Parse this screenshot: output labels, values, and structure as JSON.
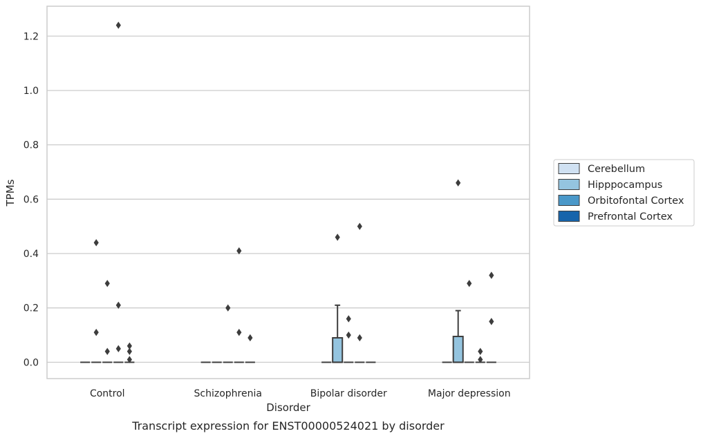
{
  "chart_data": {
    "type": "box",
    "xlabel": "Disorder",
    "ylabel": "TPMs",
    "caption": "Transcript expression for ENST00000524021 by disorder",
    "categories": [
      "Control",
      "Schizophrenia",
      "Bipolar disorder",
      "Major depression"
    ],
    "ylim": [
      -0.06,
      1.31
    ],
    "yticks": [
      0.0,
      0.2,
      0.4,
      0.6,
      0.8,
      1.0,
      1.2
    ],
    "ytick_labels": [
      "0.0",
      "0.2",
      "0.4",
      "0.6",
      "0.8",
      "1.0",
      "1.2"
    ],
    "grid": true,
    "legend_position": "right",
    "series": [
      {
        "name": "Cerebellum",
        "color": "#d0e1f2",
        "boxes": [
          {
            "category": "Control",
            "q1": 0,
            "median": 0,
            "q3": 0,
            "whisker_low": 0,
            "whisker_high": 0,
            "outliers": []
          },
          {
            "category": "Schizophrenia",
            "q1": 0,
            "median": 0,
            "q3": 0,
            "whisker_low": 0,
            "whisker_high": 0,
            "outliers": []
          },
          {
            "category": "Bipolar disorder",
            "q1": 0,
            "median": 0,
            "q3": 0,
            "whisker_low": 0,
            "whisker_high": 0,
            "outliers": []
          },
          {
            "category": "Major depression",
            "q1": 0,
            "median": 0,
            "q3": 0,
            "whisker_low": 0,
            "whisker_high": 0,
            "outliers": []
          }
        ]
      },
      {
        "name": "Hipppocampus",
        "color": "#94c4df",
        "boxes": [
          {
            "category": "Control",
            "q1": 0,
            "median": 0,
            "q3": 0,
            "whisker_low": 0,
            "whisker_high": 0,
            "outliers": [
              0.44,
              0.11
            ]
          },
          {
            "category": "Schizophrenia",
            "q1": 0,
            "median": 0,
            "q3": 0,
            "whisker_low": 0,
            "whisker_high": 0,
            "outliers": []
          },
          {
            "category": "Bipolar disorder",
            "q1": 0,
            "median": 0,
            "q3": 0.09,
            "whisker_low": 0,
            "whisker_high": 0.21,
            "outliers": [
              0.46
            ]
          },
          {
            "category": "Major depression",
            "q1": 0,
            "median": 0,
            "q3": 0.095,
            "whisker_low": 0,
            "whisker_high": 0.19,
            "outliers": [
              0.66
            ]
          }
        ]
      },
      {
        "name": "Orbitofontal Cortex",
        "color": "#4a98c9",
        "boxes": [
          {
            "category": "Control",
            "q1": 0,
            "median": 0,
            "q3": 0,
            "whisker_low": 0,
            "whisker_high": 0,
            "outliers": [
              0.29,
              0.04
            ]
          },
          {
            "category": "Schizophrenia",
            "q1": 0,
            "median": 0,
            "q3": 0,
            "whisker_low": 0,
            "whisker_high": 0,
            "outliers": [
              0.2
            ]
          },
          {
            "category": "Bipolar disorder",
            "q1": 0,
            "median": 0,
            "q3": 0,
            "whisker_low": 0,
            "whisker_high": 0,
            "outliers": [
              0.16,
              0.1
            ]
          },
          {
            "category": "Major depression",
            "q1": 0,
            "median": 0,
            "q3": 0,
            "whisker_low": 0,
            "whisker_high": 0,
            "outliers": [
              0.29
            ]
          }
        ]
      },
      {
        "name": "Prefrontal Cortex",
        "color": "#1764ab",
        "boxes": [
          {
            "category": "Control",
            "q1": 0,
            "median": 0,
            "q3": 0,
            "whisker_low": 0,
            "whisker_high": 0,
            "outliers": [
              1.24,
              0.21,
              0.05
            ]
          },
          {
            "category": "Schizophrenia",
            "q1": 0,
            "median": 0,
            "q3": 0,
            "whisker_low": 0,
            "whisker_high": 0,
            "outliers": [
              0.41,
              0.11
            ]
          },
          {
            "category": "Bipolar disorder",
            "q1": 0,
            "median": 0,
            "q3": 0,
            "whisker_low": 0,
            "whisker_high": 0,
            "outliers": [
              0.5,
              0.09
            ]
          },
          {
            "category": "Major depression",
            "q1": 0,
            "median": 0,
            "q3": 0,
            "whisker_low": 0,
            "whisker_high": 0,
            "outliers": [
              0.04,
              0.01
            ]
          }
        ]
      },
      {
        "name": "",
        "color": "#08306b",
        "boxes": [
          {
            "category": "Control",
            "q1": 0,
            "median": 0,
            "q3": 0,
            "whisker_low": 0,
            "whisker_high": 0,
            "outliers": [
              0.06,
              0.04,
              0.01
            ]
          },
          {
            "category": "Schizophrenia",
            "q1": 0,
            "median": 0,
            "q3": 0,
            "whisker_low": 0,
            "whisker_high": 0,
            "outliers": [
              0.09
            ]
          },
          {
            "category": "Bipolar disorder",
            "q1": 0,
            "median": 0,
            "q3": 0,
            "whisker_low": 0,
            "whisker_high": 0,
            "outliers": []
          },
          {
            "category": "Major depression",
            "q1": 0,
            "median": 0,
            "q3": 0,
            "whisker_low": 0,
            "whisker_high": 0,
            "outliers": [
              0.32,
              0.15
            ]
          }
        ]
      }
    ],
    "legend_entries": [
      "Cerebellum",
      "Hipppocampus",
      "Orbitofontal Cortex",
      "Prefrontal Cortex"
    ],
    "legend_colors": [
      "#d0e1f2",
      "#94c4df",
      "#4a98c9",
      "#1764ab"
    ],
    "style": {
      "grid_color": "#cccccc",
      "frame_color": "#cccccc",
      "line_color": "#3d3d3d",
      "marker_color": "#3d3d3d"
    }
  }
}
